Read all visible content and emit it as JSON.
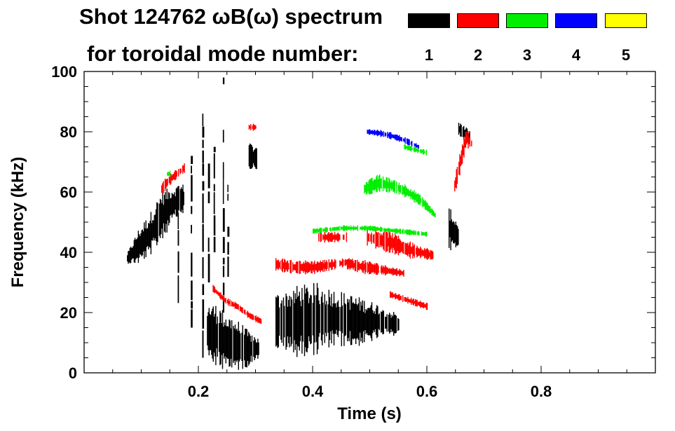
{
  "chart_data": {
    "type": "heatmap",
    "title_line1": "Shot 124762 ωB(ω) spectrum",
    "title_line2": "for toroidal mode number:",
    "xlabel": "Time (s)",
    "ylabel": "Frequency (kHz)",
    "xlim": [
      0.0,
      1.0
    ],
    "ylim": [
      0,
      100
    ],
    "xticks": [
      {
        "value": 0.2,
        "label": "0.2"
      },
      {
        "value": 0.4,
        "label": "0.4"
      },
      {
        "value": 0.6,
        "label": "0.6"
      },
      {
        "value": 0.8,
        "label": "0.8"
      }
    ],
    "yticks": [
      {
        "value": 0,
        "label": "0"
      },
      {
        "value": 20,
        "label": "20"
      },
      {
        "value": 40,
        "label": "40"
      },
      {
        "value": 60,
        "label": "60"
      },
      {
        "value": 80,
        "label": "80"
      },
      {
        "value": 100,
        "label": "100"
      }
    ],
    "legend": [
      {
        "mode": "1",
        "color": "#000000"
      },
      {
        "mode": "2",
        "color": "#ff0000"
      },
      {
        "mode": "3",
        "color": "#00ee00"
      },
      {
        "mode": "4",
        "color": "#0000ff"
      },
      {
        "mode": "5",
        "color": "#ffff00"
      }
    ],
    "features": [
      {
        "mode": "1",
        "shape": "band",
        "t0": 0.075,
        "t1": 0.175,
        "fcenter": [
          38,
          42,
          46,
          52,
          56,
          58
        ],
        "halfwidth": [
          1.5,
          5,
          6,
          7,
          5,
          4
        ]
      },
      {
        "mode": "1",
        "shape": "band",
        "t0": 0.215,
        "t1": 0.305,
        "fcenter": [
          14,
          12,
          10,
          9,
          8,
          8
        ],
        "halfwidth": [
          8,
          9,
          8,
          7,
          5,
          3
        ]
      },
      {
        "mode": "1",
        "shape": "band",
        "t0": 0.335,
        "t1": 0.55,
        "fcenter": [
          17,
          17,
          18,
          18,
          17,
          17,
          16
        ],
        "halfwidth": [
          8,
          10,
          10,
          8,
          7,
          5,
          3
        ]
      },
      {
        "mode": "1",
        "shape": "band",
        "t0": 0.288,
        "t1": 0.302,
        "fcenter": [
          72,
          71
        ],
        "halfwidth": [
          4,
          3
        ]
      },
      {
        "mode": "1",
        "shape": "band",
        "t0": 0.638,
        "t1": 0.655,
        "fcenter": [
          48,
          45
        ],
        "halfwidth": [
          6,
          4
        ]
      },
      {
        "mode": "1",
        "shape": "band",
        "t0": 0.655,
        "t1": 0.675,
        "fcenter": [
          81,
          78
        ],
        "halfwidth": [
          2,
          2
        ]
      },
      {
        "mode": "1",
        "shape": "spike",
        "t": 0.208,
        "f0": 5,
        "f1": 86
      },
      {
        "mode": "1",
        "shape": "spike",
        "t": 0.218,
        "f0": 30,
        "f1": 80
      },
      {
        "mode": "1",
        "shape": "spike",
        "t": 0.244,
        "f0": 20,
        "f1": 98
      },
      {
        "mode": "1",
        "shape": "spike",
        "t": 0.252,
        "f0": 25,
        "f1": 96
      },
      {
        "mode": "1",
        "shape": "spike",
        "t": 0.188,
        "f0": 15,
        "f1": 72
      },
      {
        "mode": "1",
        "shape": "spike",
        "t": 0.165,
        "f0": 20,
        "f1": 62
      },
      {
        "mode": "1",
        "shape": "spike",
        "t": 0.228,
        "f0": 40,
        "f1": 75
      },
      {
        "mode": "2",
        "shape": "band",
        "t0": 0.135,
        "t1": 0.175,
        "fcenter": [
          61,
          64,
          66,
          68
        ],
        "halfwidth": [
          2,
          2,
          1.5,
          1.5
        ]
      },
      {
        "mode": "2",
        "shape": "band",
        "t0": 0.225,
        "t1": 0.31,
        "fcenter": [
          28,
          24,
          22,
          19,
          17
        ],
        "halfwidth": [
          1,
          1,
          1,
          1,
          1
        ]
      },
      {
        "mode": "2",
        "shape": "band",
        "t0": 0.335,
        "t1": 0.47,
        "fcenter": [
          36,
          35,
          35,
          36,
          37
        ],
        "halfwidth": [
          2,
          2,
          2,
          1.5,
          1
        ]
      },
      {
        "mode": "2",
        "shape": "band",
        "t0": 0.41,
        "t1": 0.46,
        "fcenter": [
          45,
          45
        ],
        "halfwidth": [
          1.5,
          1.5
        ]
      },
      {
        "mode": "2",
        "shape": "band",
        "t0": 0.495,
        "t1": 0.61,
        "fcenter": [
          45,
          44,
          43,
          41,
          40,
          39
        ],
        "halfwidth": [
          2.5,
          3,
          3,
          2.5,
          2,
          1.5
        ]
      },
      {
        "mode": "2",
        "shape": "band",
        "t0": 0.46,
        "t1": 0.56,
        "fcenter": [
          36,
          35,
          34,
          33
        ],
        "halfwidth": [
          1.5,
          2,
          1.5,
          1
        ]
      },
      {
        "mode": "2",
        "shape": "band",
        "t0": 0.535,
        "t1": 0.6,
        "fcenter": [
          26,
          24,
          22
        ],
        "halfwidth": [
          1,
          1,
          1
        ]
      },
      {
        "mode": "2",
        "shape": "band",
        "t0": 0.288,
        "t1": 0.3,
        "fcenter": [
          81.5,
          81.5
        ],
        "halfwidth": [
          1,
          1
        ]
      },
      {
        "mode": "2",
        "shape": "band",
        "t0": 0.648,
        "t1": 0.678,
        "fcenter": [
          62,
          70,
          78,
          76
        ],
        "halfwidth": [
          3,
          3,
          3,
          2
        ]
      },
      {
        "mode": "3",
        "shape": "band",
        "t0": 0.49,
        "t1": 0.615,
        "fcenter": [
          61,
          63,
          62,
          60,
          57,
          52
        ],
        "halfwidth": [
          2,
          2.5,
          2,
          2,
          1.5,
          1
        ]
      },
      {
        "mode": "3",
        "shape": "band",
        "t0": 0.4,
        "t1": 0.6,
        "fcenter": [
          47,
          48,
          48,
          47,
          46
        ],
        "halfwidth": [
          0.8,
          0.8,
          0.8,
          0.8,
          0.8
        ]
      },
      {
        "mode": "3",
        "shape": "band",
        "t0": 0.145,
        "t1": 0.15,
        "fcenter": [
          66,
          66
        ],
        "halfwidth": [
          1,
          1
        ]
      },
      {
        "mode": "3",
        "shape": "band",
        "t0": 0.56,
        "t1": 0.6,
        "fcenter": [
          75,
          73
        ],
        "halfwidth": [
          0.8,
          0.8
        ]
      },
      {
        "mode": "4",
        "shape": "band",
        "t0": 0.495,
        "t1": 0.585,
        "fcenter": [
          80,
          79.5,
          78.5,
          77,
          75
        ],
        "halfwidth": [
          0.8,
          1,
          1,
          1,
          0.8
        ]
      }
    ]
  }
}
